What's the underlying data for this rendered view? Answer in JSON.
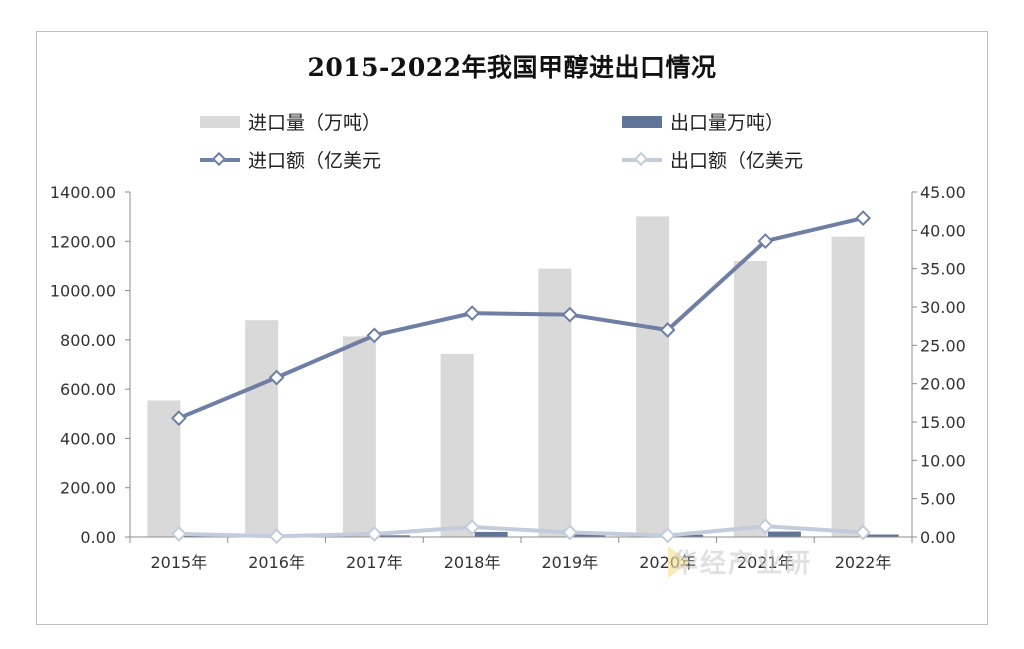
{
  "chart_data": {
    "type": "bar",
    "title": "2015-2022年我国甲醇进出口情况",
    "categories": [
      "2015年",
      "2016年",
      "2017年",
      "2018年",
      "2019年",
      "2020年",
      "2021年",
      "2022年"
    ],
    "y_left": {
      "ticks": [
        "0.00",
        "200.00",
        "400.00",
        "600.00",
        "800.00",
        "1000.00",
        "1200.00",
        "1400.00"
      ],
      "min": 0,
      "max": 1400
    },
    "y_right": {
      "ticks": [
        "0.00",
        "5.00",
        "10.00",
        "15.00",
        "20.00",
        "25.00",
        "30.00",
        "35.00",
        "40.00",
        "45.00"
      ],
      "min": 0,
      "max": 45
    },
    "grid": false,
    "legend_position": "top",
    "series": [
      {
        "name": "进口量（万吨）",
        "kind": "bar",
        "axis": "left",
        "color": "#d9d9d9",
        "values": [
          554,
          880,
          814,
          743,
          1089,
          1301,
          1120,
          1219
        ]
      },
      {
        "name": "出口量万吨）",
        "kind": "bar",
        "axis": "left",
        "color": "#5f7497",
        "values": [
          1.6,
          2.2,
          6.7,
          20.6,
          12.5,
          9.3,
          22,
          10
        ]
      },
      {
        "name": "进口额（亿美元",
        "kind": "line",
        "axis": "right",
        "color": "#6f7fa3",
        "values": [
          15.5,
          20.8,
          26.3,
          29.2,
          29.0,
          27.0,
          38.6,
          41.6
        ]
      },
      {
        "name": "出口额（亿美元",
        "kind": "line",
        "axis": "right",
        "color": "#c3ccdb",
        "values": [
          0.4,
          0.1,
          0.4,
          1.3,
          0.6,
          0.2,
          1.4,
          0.6
        ]
      }
    ],
    "watermark": "华经产业研"
  }
}
